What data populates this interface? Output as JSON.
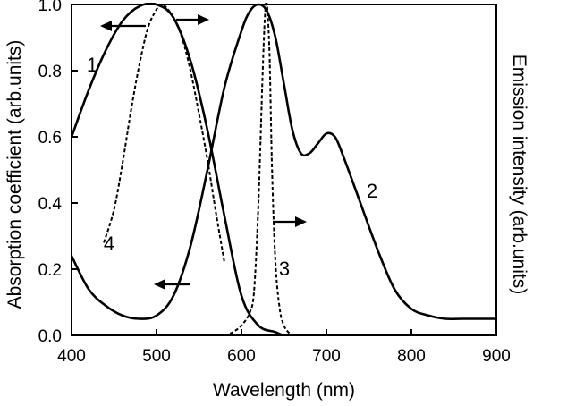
{
  "chart_data": {
    "type": "line",
    "title": "",
    "xlabel": "Wavelength (nm)",
    "ylabel_left": "Absorption coefficient (arb.units)",
    "ylabel_right": "Emission intensity (arb.units)",
    "xlim": [
      400,
      900
    ],
    "ylim": [
      0,
      1.0
    ],
    "x_ticks": [
      400,
      500,
      600,
      700,
      800,
      900
    ],
    "y_ticks": [
      0.0,
      0.2,
      0.4,
      0.6,
      0.8,
      1.0
    ],
    "x_tick_labels": [
      "400",
      "500",
      "600",
      "700",
      "800",
      "900"
    ],
    "y_tick_labels": [
      "0.0",
      "0.2",
      "0.4",
      "0.6",
      "0.8",
      "1.0"
    ],
    "grid": false,
    "legend": "none",
    "series": [
      {
        "name": "1",
        "style": "solid",
        "axis": "left",
        "x": [
          400,
          420,
          440,
          460,
          480,
          500,
          520,
          540,
          560,
          580,
          600,
          620,
          640,
          650,
          660
        ],
        "y": [
          0.6,
          0.74,
          0.86,
          0.95,
          0.995,
          1.0,
          0.96,
          0.83,
          0.62,
          0.36,
          0.12,
          0.03,
          0.01,
          0.0,
          0.0
        ]
      },
      {
        "name": "2",
        "style": "solid",
        "axis": "left",
        "x": [
          400,
          420,
          440,
          460,
          480,
          500,
          520,
          540,
          560,
          580,
          600,
          610,
          620,
          630,
          640,
          650,
          660,
          670,
          680,
          690,
          700,
          710,
          720,
          740,
          760,
          780,
          800,
          820,
          840,
          860,
          880,
          900
        ],
        "y": [
          0.24,
          0.14,
          0.09,
          0.06,
          0.05,
          0.06,
          0.12,
          0.27,
          0.5,
          0.75,
          0.92,
          0.98,
          1.0,
          0.98,
          0.9,
          0.76,
          0.62,
          0.55,
          0.55,
          0.58,
          0.61,
          0.6,
          0.54,
          0.4,
          0.26,
          0.14,
          0.08,
          0.06,
          0.05,
          0.05,
          0.05,
          0.05
        ]
      },
      {
        "name": "3",
        "style": "dashed",
        "axis": "right",
        "x": [
          580,
          590,
          600,
          610,
          615,
          620,
          625,
          628,
          630,
          633,
          636,
          640,
          645,
          650,
          655,
          660
        ],
        "y": [
          0.0,
          0.01,
          0.03,
          0.07,
          0.14,
          0.4,
          0.8,
          0.98,
          1.0,
          0.85,
          0.5,
          0.22,
          0.08,
          0.03,
          0.01,
          0.0
        ]
      },
      {
        "name": "4",
        "style": "dashed",
        "axis": "left",
        "x": [
          438,
          450,
          460,
          470,
          480,
          490,
          500,
          505,
          510,
          515,
          520,
          530,
          540,
          550,
          560,
          570,
          580
        ],
        "y": [
          0.28,
          0.38,
          0.52,
          0.68,
          0.82,
          0.93,
          0.985,
          1.0,
          0.995,
          0.98,
          0.96,
          0.9,
          0.8,
          0.67,
          0.53,
          0.37,
          0.22
        ]
      }
    ],
    "curve_labels": [
      "1",
      "2",
      "3",
      "4"
    ]
  }
}
